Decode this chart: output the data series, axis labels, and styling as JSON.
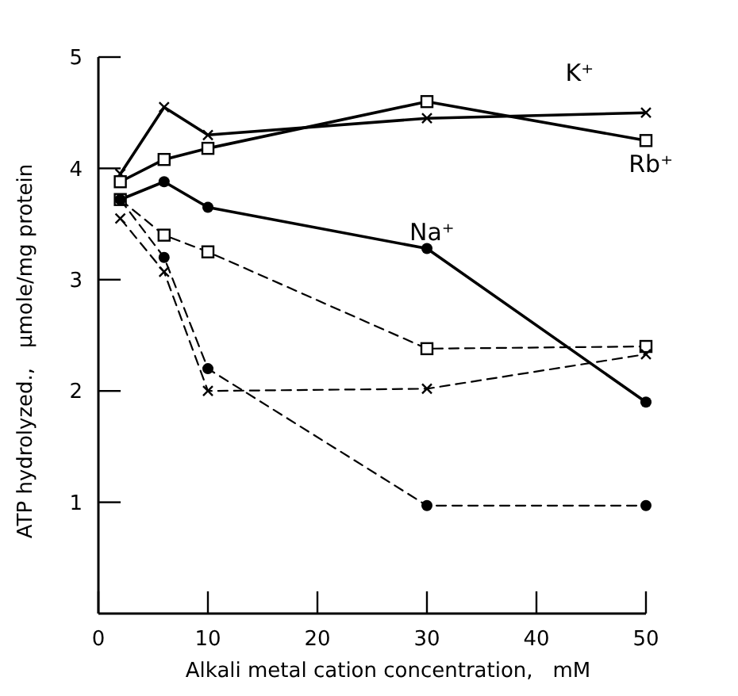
{
  "chart_data": {
    "type": "line",
    "xlabel": "Alkali metal cation concentration,   mM",
    "ylabel": "ATP hydrolyzed.,   μmole/mg protein",
    "x": [
      2,
      6,
      10,
      30,
      50
    ],
    "xlim": [
      0,
      50
    ],
    "ylim": [
      0,
      5
    ],
    "xticks": [
      0,
      10,
      20,
      30,
      40,
      50
    ],
    "yticks": [
      1,
      2,
      3,
      4,
      5
    ],
    "grid": false,
    "series": [
      {
        "name": "K⁺",
        "color": "#000000",
        "marker": "cross",
        "line_style": "solid",
        "values": [
          3.95,
          4.55,
          4.3,
          4.45,
          4.5
        ]
      },
      {
        "name": "Rb⁺",
        "color": "#000000",
        "marker": "square",
        "line_style": "solid",
        "values": [
          3.88,
          4.08,
          4.18,
          4.6,
          4.25
        ]
      },
      {
        "name": "Na⁺",
        "color": "#000000",
        "marker": "circle",
        "line_style": "solid",
        "values": [
          3.72,
          3.88,
          3.65,
          3.28,
          1.9
        ]
      },
      {
        "color": "#000000",
        "marker": "square",
        "line_style": "dashed",
        "values": [
          3.72,
          3.4,
          3.25,
          2.38,
          2.4
        ]
      },
      {
        "color": "#000000",
        "marker": "cross",
        "line_style": "dashed",
        "values": [
          3.55,
          3.07,
          2.0,
          2.02,
          2.33
        ]
      },
      {
        "color": "#000000",
        "marker": "circle",
        "line_style": "dashed",
        "values": [
          3.72,
          3.2,
          2.2,
          0.97,
          0.97
        ]
      }
    ]
  }
}
